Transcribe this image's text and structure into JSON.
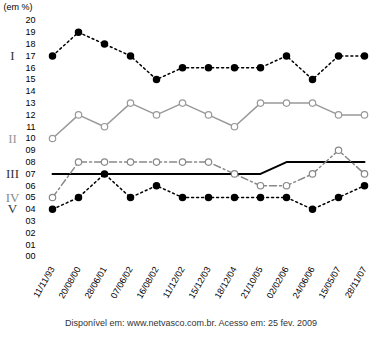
{
  "chart_data": {
    "type": "line",
    "y_label": "(em %)",
    "caption": "Disponível em: www.netvasco.com.br. Acesso em: 25 fev. 2009",
    "categories": [
      "11/11/93",
      "20/08/00",
      "28/06/01",
      "07/06/02",
      "16/08/02",
      "11/12/02",
      "15/12/03",
      "18/12/04",
      "21/10/05",
      "02/02/06",
      "24/06/06",
      "15/05/07",
      "28/11/07"
    ],
    "series": [
      {
        "name": "I",
        "color": "#000000",
        "marker": "circle",
        "line_style": "dotted",
        "values": [
          17,
          19,
          18,
          17,
          15,
          16,
          16,
          16,
          16,
          17,
          15,
          17,
          17
        ]
      },
      {
        "name": "II",
        "color": "#999999",
        "marker": "circle_open",
        "line_style": "solid",
        "values": [
          10,
          12,
          11,
          13,
          12,
          13,
          12,
          11,
          13,
          13,
          13,
          12,
          12
        ]
      },
      {
        "name": "III",
        "color": "#000000",
        "marker": "none",
        "line_style": "solid",
        "values": [
          7,
          7,
          7,
          7,
          7,
          7,
          7,
          7,
          7,
          8,
          8,
          8,
          8
        ]
      },
      {
        "name": "IV",
        "color": "#888888",
        "marker": "circle_open",
        "line_style": "dashdot",
        "values": [
          5,
          8,
          8,
          8,
          8,
          8,
          8,
          7,
          6,
          6,
          7,
          9,
          7
        ]
      },
      {
        "name": "V",
        "color": "#000000",
        "marker": "circle",
        "line_style": "dotted",
        "values": [
          4,
          5,
          7,
          5,
          6,
          5,
          5,
          5,
          5,
          5,
          4,
          5,
          6
        ]
      }
    ],
    "ylim": [
      0,
      20
    ],
    "yticks": [
      {
        "value": 0,
        "label": "00"
      },
      {
        "value": 1,
        "label": "01"
      },
      {
        "value": 2,
        "label": "02"
      },
      {
        "value": 3,
        "label": "03"
      },
      {
        "value": 4,
        "label": "04"
      },
      {
        "value": 5,
        "label": "05"
      },
      {
        "value": 6,
        "label": "06"
      },
      {
        "value": 7,
        "label": "07"
      },
      {
        "value": 8,
        "label": "08"
      },
      {
        "value": 9,
        "label": "09"
      },
      10,
      11,
      12,
      13,
      14,
      15,
      16,
      17,
      18,
      19,
      20
    ],
    "grid": false
  }
}
